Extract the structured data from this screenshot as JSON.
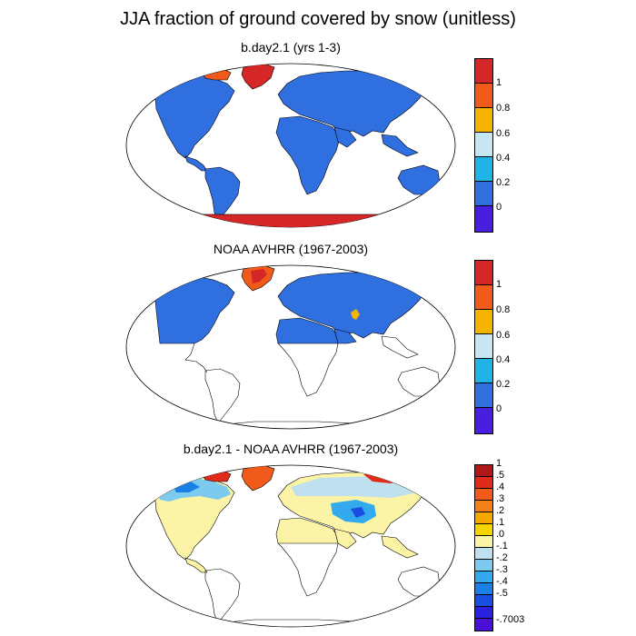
{
  "title": "JJA fraction of ground covered by snow (unitless)",
  "panels": [
    {
      "id": "model",
      "title": "b.day2.1 (yrs 1-3)",
      "colorbar": {
        "colors": [
          "#d62728",
          "#f05a1a",
          "#f5b400",
          "#c6e6f2",
          "#1fb3e6",
          "#2f6fe0",
          "#4a1ee0"
        ],
        "labels": [
          "1",
          "0.8",
          "0.6",
          "0.4",
          "0.2",
          "0"
        ]
      }
    },
    {
      "id": "obs",
      "title": "NOAA AVHRR (1967-2003)",
      "colorbar": {
        "colors": [
          "#d62728",
          "#f05a1a",
          "#f5b400",
          "#c6e6f2",
          "#1fb3e6",
          "#2f6fe0",
          "#4a1ee0"
        ],
        "labels": [
          "1",
          "0.8",
          "0.6",
          "0.4",
          "0.2",
          "0"
        ]
      }
    },
    {
      "id": "diff",
      "title": "b.day2.1 - NOAA AVHRR (1967-2003)",
      "colorbar": {
        "colors": [
          "#b01818",
          "#e02a1a",
          "#f05a1a",
          "#f5801a",
          "#f5a800",
          "#f5d400",
          "#fbf3a6",
          "#bfe0ef",
          "#7ccbef",
          "#33aaee",
          "#1a80e6",
          "#1a4ee0",
          "#2a20e0",
          "#4a10d8"
        ],
        "labels": [
          "1",
          ".5",
          ".4",
          ".3",
          ".2",
          ".1",
          ".0",
          "-.1",
          "-.2",
          "-.3",
          "-.4",
          "-.5",
          "-.7003"
        ]
      }
    }
  ]
}
